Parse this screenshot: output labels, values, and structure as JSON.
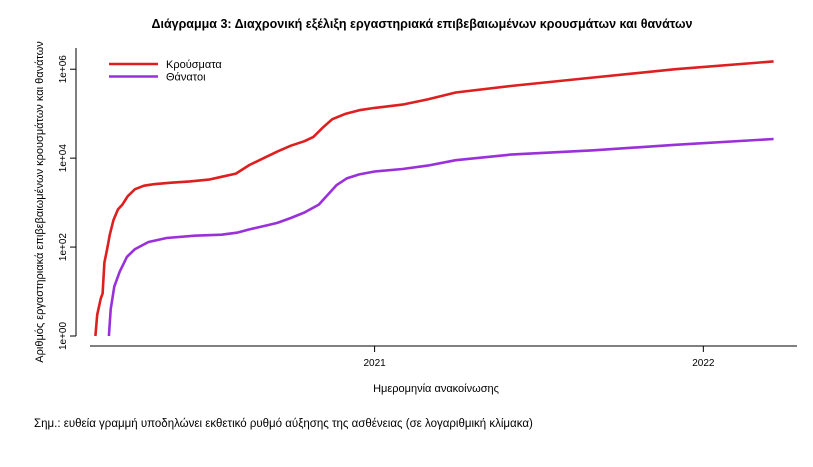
{
  "chart_data": {
    "type": "line",
    "title": "Διάγραμμα 3: Διαχρονική εξέλιξη εργαστηριακά επιβεβαιωμένων κρουσμάτων και θανάτων",
    "xlabel": "Ημερομηνία ανακοίνωσης",
    "ylabel": "Αριθμός εργαστηριακά επιβεβαιωμένων κρουσμάτων και θανάτων",
    "y_scale": "log10",
    "ylim": [
      1,
      3000000
    ],
    "xlim": [
      "2020-02-20",
      "2022-04-15"
    ],
    "x_ticks": [
      {
        "date": "2021-01-01",
        "label": "2021"
      },
      {
        "date": "2022-01-01",
        "label": "2022"
      }
    ],
    "y_ticks": [
      {
        "value": 1,
        "label": "1e+00"
      },
      {
        "value": 100,
        "label": "1e+02"
      },
      {
        "value": 10000,
        "label": "1e+04"
      },
      {
        "value": 1000000,
        "label": "1e+06"
      }
    ],
    "grid": false,
    "legend_position": "top-left",
    "series": [
      {
        "name": "Κρούσματα",
        "color": "#dd1f1f",
        "points": [
          [
            "2020-02-26",
            1
          ],
          [
            "2020-02-28",
            3
          ],
          [
            "2020-03-03",
            7
          ],
          [
            "2020-03-05",
            9
          ],
          [
            "2020-03-07",
            45
          ],
          [
            "2020-03-10",
            89
          ],
          [
            "2020-03-13",
            190
          ],
          [
            "2020-03-17",
            400
          ],
          [
            "2020-03-22",
            700
          ],
          [
            "2020-03-27",
            900
          ],
          [
            "2020-04-02",
            1400
          ],
          [
            "2020-04-10",
            2000
          ],
          [
            "2020-04-20",
            2400
          ],
          [
            "2020-05-01",
            2600
          ],
          [
            "2020-05-20",
            2800
          ],
          [
            "2020-06-10",
            3000
          ],
          [
            "2020-07-01",
            3300
          ],
          [
            "2020-07-15",
            3800
          ],
          [
            "2020-07-31",
            4500
          ],
          [
            "2020-08-15",
            7000
          ],
          [
            "2020-08-31",
            10000
          ],
          [
            "2020-09-15",
            14000
          ],
          [
            "2020-09-30",
            19000
          ],
          [
            "2020-10-15",
            24000
          ],
          [
            "2020-10-25",
            30000
          ],
          [
            "2020-11-05",
            50000
          ],
          [
            "2020-11-15",
            75000
          ],
          [
            "2020-11-30",
            100000
          ],
          [
            "2020-12-15",
            120000
          ],
          [
            "2021-01-01",
            135000
          ],
          [
            "2021-02-01",
            160000
          ],
          [
            "2021-03-01",
            210000
          ],
          [
            "2021-04-01",
            300000
          ],
          [
            "2021-06-01",
            420000
          ],
          [
            "2021-09-01",
            650000
          ],
          [
            "2021-12-01",
            1000000
          ],
          [
            "2022-03-20",
            1500000
          ]
        ]
      },
      {
        "name": "Θάνατοι",
        "color": "#9a30d9",
        "points": [
          [
            "2020-03-12",
            1
          ],
          [
            "2020-03-14",
            4
          ],
          [
            "2020-03-18",
            13
          ],
          [
            "2020-03-24",
            28
          ],
          [
            "2020-04-01",
            60
          ],
          [
            "2020-04-10",
            90
          ],
          [
            "2020-04-25",
            130
          ],
          [
            "2020-05-15",
            160
          ],
          [
            "2020-06-15",
            180
          ],
          [
            "2020-07-15",
            190
          ],
          [
            "2020-08-01",
            210
          ],
          [
            "2020-08-15",
            250
          ],
          [
            "2020-09-01",
            300
          ],
          [
            "2020-09-15",
            350
          ],
          [
            "2020-09-30",
            450
          ],
          [
            "2020-10-15",
            600
          ],
          [
            "2020-10-31",
            900
          ],
          [
            "2020-11-10",
            1500
          ],
          [
            "2020-11-20",
            2500
          ],
          [
            "2020-12-01",
            3500
          ],
          [
            "2020-12-15",
            4300
          ],
          [
            "2021-01-01",
            5000
          ],
          [
            "2021-02-01",
            5700
          ],
          [
            "2021-03-01",
            6800
          ],
          [
            "2021-04-01",
            9000
          ],
          [
            "2021-06-01",
            12000
          ],
          [
            "2021-09-01",
            15000
          ],
          [
            "2021-12-01",
            20000
          ],
          [
            "2022-03-20",
            27000
          ]
        ]
      }
    ]
  },
  "note": "Σημ.: ευθεία γραμμή υποδηλώνει εκθετικό ρυθμό αύξησης της ασθένειας (σε λογαριθμική κλίμακα)"
}
